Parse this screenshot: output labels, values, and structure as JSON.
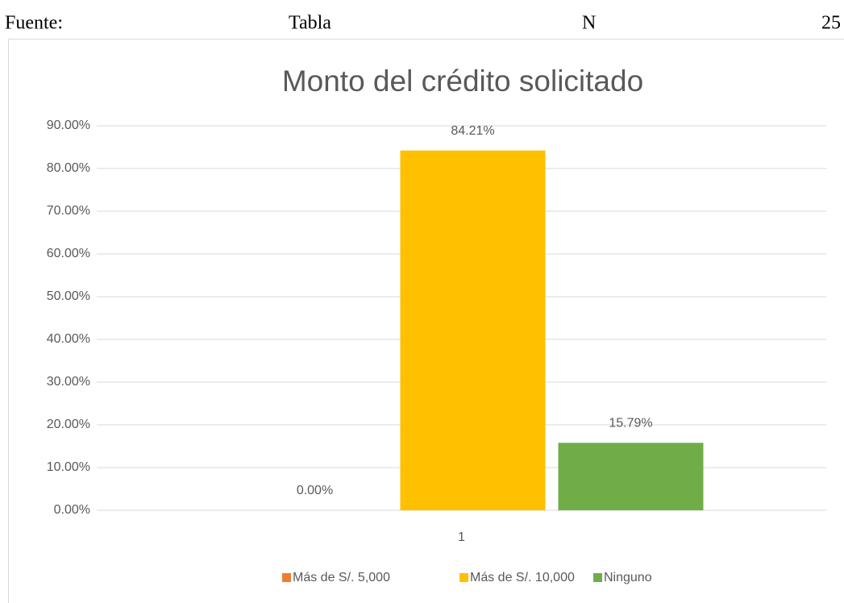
{
  "header": [
    "Fuente:",
    "Tabla",
    "N",
    "25"
  ],
  "chart_data": {
    "type": "bar",
    "title": "Monto del crédito solicitado",
    "categories": [
      "1"
    ],
    "series": [
      {
        "name": "Más de S/. 5,000",
        "color": "#ed7d31",
        "values": [
          0
        ],
        "value_labels": [
          "0.00%"
        ]
      },
      {
        "name": "Más de S/. 10,000",
        "color": "#ffc000",
        "values": [
          84.21
        ],
        "value_labels": [
          "84.21%"
        ]
      },
      {
        "name": "Ninguno",
        "color": "#70ad47",
        "values": [
          15.79
        ],
        "value_labels": [
          "15.79%"
        ]
      }
    ],
    "ylim": [
      0,
      90
    ],
    "yticks": [
      {
        "value": 0,
        "label": "0.00%"
      },
      {
        "value": 10,
        "label": "10.00%"
      },
      {
        "value": 20,
        "label": "20.00%"
      },
      {
        "value": 30,
        "label": "30.00%"
      },
      {
        "value": 40,
        "label": "40.00%"
      },
      {
        "value": 50,
        "label": "50.00%"
      },
      {
        "value": 60,
        "label": "60.00%"
      },
      {
        "value": 70,
        "label": "70.00%"
      },
      {
        "value": 80,
        "label": "80.00%"
      },
      {
        "value": 90,
        "label": "90.00%"
      }
    ],
    "grid": true,
    "legend": "bottom"
  }
}
